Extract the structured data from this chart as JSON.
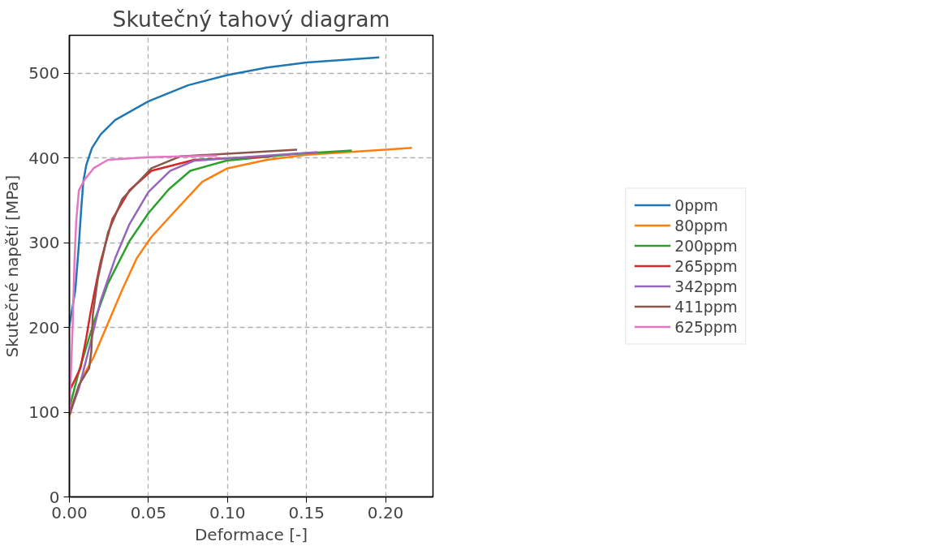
{
  "chart_data": {
    "type": "line",
    "title": "Skutečný tahový diagram",
    "xlabel": "Deformace [-]",
    "ylabel": "Skutečné napětí [MPa]",
    "xlim": [
      0,
      0.23
    ],
    "ylim": [
      0,
      545
    ],
    "xticks": [
      {
        "value": 0,
        "label": "0.00"
      },
      {
        "value": 0.05,
        "label": "0.05"
      },
      {
        "value": 0.1,
        "label": "0.10"
      },
      {
        "value": 0.15,
        "label": "0.15"
      },
      {
        "value": 0.2,
        "label": "0.20"
      }
    ],
    "yticks": [
      0,
      100,
      200,
      300,
      400,
      500
    ],
    "grid": true,
    "legend": "right",
    "line_style": "solid",
    "series": [
      {
        "name": "0ppm",
        "color": "#1f77b4",
        "x": [
          0,
          0.0038,
          0.006,
          0.0074,
          0.0088,
          0.0107,
          0.0143,
          0.0198,
          0.029,
          0.05,
          0.075,
          0.1,
          0.125,
          0.15,
          0.196
        ],
        "values": [
          202,
          245,
          298,
          338,
          372,
          392,
          412,
          428,
          445,
          467,
          486,
          498,
          507,
          513,
          519
        ]
      },
      {
        "name": "80ppm",
        "color": "#ff7f0e",
        "x": [
          0,
          0.003,
          0.008,
          0.0153,
          0.0244,
          0.0335,
          0.0427,
          0.05,
          0.0519,
          0.0656,
          0.084,
          0.1,
          0.125,
          0.15,
          0.2,
          0.2167
        ],
        "values": [
          95,
          115,
          140,
          165,
          205,
          245,
          282,
          302,
          307,
          335,
          372,
          388,
          398,
          404,
          410,
          412
        ]
      },
      {
        "name": "200ppm",
        "color": "#2ca02c",
        "x": [
          0,
          0.006,
          0.0153,
          0.0244,
          0.038,
          0.05,
          0.0628,
          0.0765,
          0.0994,
          0.143,
          0.1786
        ],
        "values": [
          105,
          148,
          205,
          252,
          302,
          335,
          363,
          385,
          397,
          405,
          409
        ]
      },
      {
        "name": "265ppm",
        "color": "#d62728",
        "x": [
          0,
          0.007,
          0.0107,
          0.0134,
          0.0162,
          0.0198,
          0.0272,
          0.038,
          0.0519,
          0.079,
          0.128
        ],
        "values": [
          125,
          152,
          188,
          218,
          245,
          278,
          328,
          362,
          385,
          398,
          402
        ]
      },
      {
        "name": "342ppm",
        "color": "#9467bd",
        "x": [
          0,
          0.006,
          0.0134,
          0.0198,
          0.029,
          0.038,
          0.05,
          0.0637,
          0.079,
          0.157
        ],
        "values": [
          97,
          128,
          182,
          232,
          282,
          322,
          360,
          385,
          397,
          407
        ]
      },
      {
        "name": "411ppm",
        "color": "#8c564b",
        "x": [
          0,
          0.006,
          0.0125,
          0.0139,
          0.0148,
          0.018,
          0.0244,
          0.0335,
          0.0519,
          0.07,
          0.144
        ],
        "values": [
          97,
          132,
          152,
          172,
          215,
          258,
          312,
          352,
          388,
          402,
          410
        ]
      },
      {
        "name": "625ppm",
        "color": "#e377c2",
        "x": [
          0,
          0.002,
          0.0033,
          0.0043,
          0.006,
          0.0098,
          0.0153,
          0.0244,
          0.05,
          0.0935
        ],
        "values": [
          100,
          198,
          282,
          325,
          362,
          375,
          388,
          398,
          401,
          403
        ]
      }
    ]
  }
}
